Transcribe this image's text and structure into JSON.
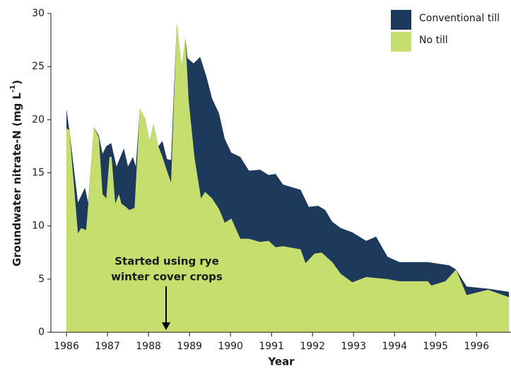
{
  "chart_data": {
    "type": "area",
    "xlabel": "Year",
    "ylabel": [
      "Groundwater nitrate-N (mg L",
      "-1",
      ")"
    ],
    "annotation": [
      "Started using rye",
      "winter cover crops"
    ],
    "xlim": [
      1985.62,
      1996.84
    ],
    "ylim": [
      0,
      30
    ],
    "xticks": [
      1986,
      1987,
      1988,
      1989,
      1990,
      1991,
      1992,
      1993,
      1994,
      1995,
      1996
    ],
    "yticks": [
      0,
      5,
      10,
      15,
      20,
      25,
      30
    ],
    "series": [
      {
        "name": "Conventional till",
        "color": "#1d3a5c",
        "x": [
          1986.0,
          1986.07,
          1986.28,
          1986.45,
          1986.53,
          1986.67,
          1986.79,
          1986.88,
          1986.97,
          1987.09,
          1987.22,
          1987.4,
          1987.5,
          1987.62,
          1987.69,
          1987.79,
          1987.91,
          1988.03,
          1988.12,
          1988.24,
          1988.34,
          1988.45,
          1988.55,
          1988.69,
          1988.81,
          1988.9,
          1988.95,
          1989.1,
          1989.26,
          1989.41,
          1989.55,
          1989.72,
          1989.86,
          1990.02,
          1990.24,
          1990.45,
          1990.72,
          1990.93,
          1991.1,
          1991.28,
          1991.71,
          1991.91,
          1992.14,
          1992.31,
          1992.48,
          1992.69,
          1992.97,
          1993.31,
          1993.55,
          1993.83,
          1994.12,
          1994.81,
          1995.33,
          1995.5,
          1995.76,
          1996.28,
          1996.79
        ],
        "values": [
          21,
          19,
          12.2,
          13.6,
          12.2,
          19.3,
          18.5,
          16.8,
          17.5,
          17.8,
          15.6,
          17.3,
          15.6,
          16.5,
          15.6,
          21,
          20.2,
          18,
          19.6,
          17.5,
          18,
          16.3,
          16.2,
          29.1,
          25,
          27.7,
          25.8,
          25.3,
          25.9,
          24.1,
          22,
          20.6,
          18.2,
          16.9,
          16.5,
          15.2,
          15.3,
          14.8,
          14.9,
          13.9,
          13.4,
          11.8,
          11.9,
          11.5,
          10.4,
          9.8,
          9.4,
          8.6,
          9,
          7.1,
          6.6,
          6.6,
          6.3,
          5.9,
          4.3,
          4.1,
          3.8
        ]
      },
      {
        "name": "No till",
        "color": "#c6de6e",
        "x": [
          1986.0,
          1986.07,
          1986.28,
          1986.36,
          1986.48,
          1986.53,
          1986.67,
          1986.79,
          1986.88,
          1986.97,
          1987.05,
          1987.1,
          1987.19,
          1987.28,
          1987.34,
          1987.45,
          1987.53,
          1987.66,
          1987.79,
          1987.91,
          1988.03,
          1988.12,
          1988.24,
          1988.34,
          1988.45,
          1988.55,
          1988.69,
          1988.81,
          1988.9,
          1988.98,
          1989.12,
          1989.28,
          1989.38,
          1989.55,
          1989.72,
          1989.86,
          1990.02,
          1990.24,
          1990.45,
          1990.72,
          1990.93,
          1991.1,
          1991.28,
          1991.71,
          1991.83,
          1992.05,
          1992.22,
          1992.48,
          1992.69,
          1992.97,
          1993.31,
          1993.83,
          1994.12,
          1994.81,
          1994.9,
          1995.24,
          1995.5,
          1995.76,
          1996.28,
          1996.79
        ],
        "values": [
          19.2,
          19,
          9.3,
          9.8,
          9.6,
          12,
          19.3,
          18.3,
          13,
          12.6,
          16.5,
          16.5,
          12.1,
          13,
          12.1,
          11.8,
          11.5,
          11.7,
          21,
          20.2,
          18,
          19.6,
          17.5,
          16.5,
          15.2,
          14.1,
          29.1,
          25,
          27.7,
          21.8,
          16.5,
          12.6,
          13.2,
          12.6,
          11.6,
          10.3,
          10.7,
          8.8,
          8.8,
          8.5,
          8.6,
          8,
          8.1,
          7.8,
          6.5,
          7.4,
          7.5,
          6.6,
          5.5,
          4.7,
          5.2,
          5,
          4.8,
          4.8,
          4.4,
          4.8,
          5.9,
          3.5,
          4,
          3.3
        ]
      }
    ]
  }
}
